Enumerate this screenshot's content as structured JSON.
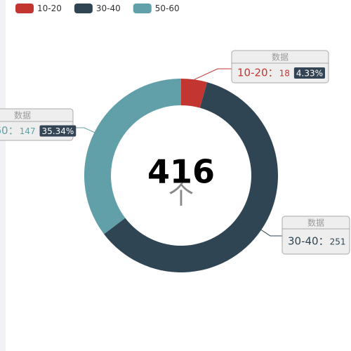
{
  "chart_data": {
    "type": "pie",
    "categories": [
      "10-20",
      "30-40",
      "50-60"
    ],
    "values": [
      18,
      251,
      147
    ],
    "value_labels": [
      "4.33%",
      null,
      "35.34%"
    ],
    "colors": [
      "#c23531",
      "#2f4554",
      "#61a0a8"
    ],
    "label_title": "数据",
    "center_value": 416,
    "center_unit": "个",
    "legend": "top-left"
  }
}
